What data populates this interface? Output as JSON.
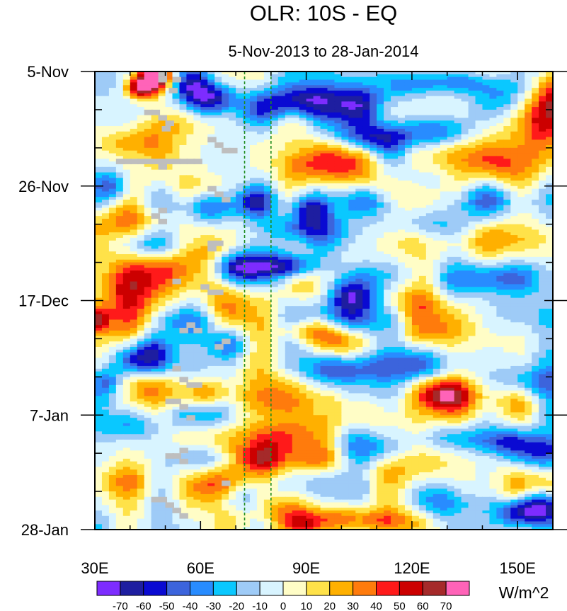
{
  "chart_data": {
    "type": "heatmap",
    "title": "OLR: 10S - EQ",
    "subtitle": "5-Nov-2013 to 28-Jan-2014",
    "x_axis": {
      "range": [
        30,
        160
      ],
      "ticks": [
        {
          "value": 30,
          "label": "30E"
        },
        {
          "value": 60,
          "label": "60E"
        },
        {
          "value": 90,
          "label": "90E"
        },
        {
          "value": 120,
          "label": "120E"
        },
        {
          "value": 150,
          "label": "150E"
        }
      ],
      "minor_tick_step": 10
    },
    "y_axis": {
      "range_days": [
        0,
        84
      ],
      "direction": "down",
      "ticks": [
        {
          "day": 0,
          "label": "5-Nov"
        },
        {
          "day": 21,
          "label": "26-Nov"
        },
        {
          "day": 42,
          "label": "17-Dec"
        },
        {
          "day": 63,
          "label": "7-Jan"
        },
        {
          "day": 84,
          "label": "28-Jan"
        }
      ],
      "minor_tick_step_days": 7
    },
    "reference_lines": [
      {
        "x": 72.5,
        "color": "#1e8c1e",
        "style": "dashed"
      },
      {
        "x": 80,
        "color": "#1e8c1e",
        "style": "dashed"
      }
    ],
    "missing_color": "#bebebe",
    "features": [
      {
        "cx": 43,
        "cy": 3,
        "sx": 3,
        "sy": 1.5,
        "v": 75
      },
      {
        "cx": 47,
        "cy": 1,
        "sx": 3,
        "sy": 1.5,
        "v": 75
      },
      {
        "cx": 63,
        "cy": 5,
        "sx": 5,
        "sy": 2,
        "v": -65
      },
      {
        "cx": 57,
        "cy": 2.5,
        "sx": 4,
        "sy": 2,
        "v": -40
      },
      {
        "cx": 50,
        "cy": 9.5,
        "sx": 6,
        "sy": 2,
        "v": 22
      },
      {
        "cx": 40,
        "cy": 13,
        "sx": 8,
        "sy": 2,
        "v": 25
      },
      {
        "cx": 80,
        "cy": 7,
        "sx": 7,
        "sy": 2,
        "v": -35
      },
      {
        "cx": 87,
        "cy": 5,
        "sx": 6,
        "sy": 2,
        "v": -50
      },
      {
        "cx": 104,
        "cy": 6,
        "sx": 9,
        "sy": 2.5,
        "v": -50
      },
      {
        "cx": 110,
        "cy": 12,
        "sx": 8,
        "sy": 2,
        "v": -55
      },
      {
        "cx": 128,
        "cy": 11,
        "sx": 7,
        "sy": 2,
        "v": -45
      },
      {
        "cx": 145,
        "cy": 5,
        "sx": 7,
        "sy": 2.5,
        "v": -35
      },
      {
        "cx": 135,
        "cy": 2,
        "sx": 8,
        "sy": 1.5,
        "v": -30
      },
      {
        "cx": 120,
        "cy": 2.5,
        "sx": 6,
        "sy": 1.5,
        "v": -25
      },
      {
        "cx": 157,
        "cy": 9,
        "sx": 4,
        "sy": 4,
        "v": 40
      },
      {
        "cx": 160,
        "cy": 4,
        "sx": 3,
        "sy": 3,
        "v": 35
      },
      {
        "cx": 101,
        "cy": 17,
        "sx": 8,
        "sy": 2.5,
        "v": 38
      },
      {
        "cx": 87,
        "cy": 17,
        "sx": 4,
        "sy": 2,
        "v": 20
      },
      {
        "cx": 145,
        "cy": 17,
        "sx": 8,
        "sy": 2.5,
        "v": 26
      },
      {
        "cx": 125,
        "cy": 19.5,
        "sx": 7,
        "sy": 2,
        "v": -20
      },
      {
        "cx": 55,
        "cy": 21,
        "sx": 8,
        "sy": 2,
        "v": 16
      },
      {
        "cx": 35,
        "cy": 21,
        "sx": 4,
        "sy": 2,
        "v": -45
      },
      {
        "cx": 76,
        "cy": 24,
        "sx": 4,
        "sy": 2,
        "v": -55
      },
      {
        "cx": 91,
        "cy": 25,
        "sx": 4,
        "sy": 2,
        "v": -60
      },
      {
        "cx": 107,
        "cy": 24,
        "sx": 6,
        "sy": 2,
        "v": -45
      },
      {
        "cx": 140,
        "cy": 24,
        "sx": 10,
        "sy": 2,
        "v": -30
      },
      {
        "cx": 63,
        "cy": 25,
        "sx": 5,
        "sy": 2,
        "v": -40
      },
      {
        "cx": 40,
        "cy": 27.5,
        "sx": 8,
        "sy": 2,
        "v": 20
      },
      {
        "cx": 88,
        "cy": 29,
        "sx": 8,
        "sy": 2,
        "v": -45
      },
      {
        "cx": 128,
        "cy": 28,
        "sx": 8,
        "sy": 2,
        "v": -25
      },
      {
        "cx": 118,
        "cy": 31,
        "sx": 7,
        "sy": 2,
        "v": 24
      },
      {
        "cx": 150,
        "cy": 31,
        "sx": 9,
        "sy": 2,
        "v": 16
      },
      {
        "cx": 45,
        "cy": 32,
        "sx": 7,
        "sy": 2,
        "v": -35
      },
      {
        "cx": 77,
        "cy": 36,
        "sx": 6,
        "sy": 2.5,
        "v": -72
      },
      {
        "cx": 69,
        "cy": 36,
        "sx": 4,
        "sy": 2,
        "v": -55
      },
      {
        "cx": 86,
        "cy": 35.5,
        "sx": 5,
        "sy": 1.5,
        "v": -45
      },
      {
        "cx": 50,
        "cy": 36,
        "sx": 8,
        "sy": 3,
        "v": 32
      },
      {
        "cx": 40,
        "cy": 39,
        "sx": 6,
        "sy": 2.5,
        "v": 28
      },
      {
        "cx": 63,
        "cy": 33,
        "sx": 5,
        "sy": 2,
        "v": 15
      },
      {
        "cx": 103,
        "cy": 41,
        "sx": 5,
        "sy": 2,
        "v": -65
      },
      {
        "cx": 110,
        "cy": 37.5,
        "sx": 8,
        "sy": 2,
        "v": -35
      },
      {
        "cx": 145,
        "cy": 38,
        "sx": 10,
        "sy": 2,
        "v": -30
      },
      {
        "cx": 93,
        "cy": 39,
        "sx": 5,
        "sy": 2,
        "v": 18
      },
      {
        "cx": 120,
        "cy": 43,
        "sx": 6,
        "sy": 2,
        "v": 22
      },
      {
        "cx": 40,
        "cy": 44,
        "sx": 5,
        "sy": 3,
        "v": 25
      },
      {
        "cx": 31,
        "cy": 45.5,
        "sx": 2,
        "sy": 1.5,
        "v": 45
      },
      {
        "cx": 55,
        "cy": 46,
        "sx": 7,
        "sy": 2,
        "v": -30
      },
      {
        "cx": 68,
        "cy": 44,
        "sx": 4,
        "sy": 2,
        "v": 22
      },
      {
        "cx": 100,
        "cy": 45,
        "sx": 7,
        "sy": 2,
        "v": -35
      },
      {
        "cx": 150,
        "cy": 45,
        "sx": 9,
        "sy": 2.5,
        "v": -25
      },
      {
        "cx": 90,
        "cy": 47.5,
        "sx": 6,
        "sy": 1.5,
        "v": 30
      },
      {
        "cx": 100,
        "cy": 49.5,
        "sx": 6,
        "sy": 2,
        "v": 38
      },
      {
        "cx": 125,
        "cy": 48,
        "sx": 7,
        "sy": 2,
        "v": 18
      },
      {
        "cx": 47,
        "cy": 52,
        "sx": 4,
        "sy": 2.5,
        "v": -68
      },
      {
        "cx": 40,
        "cy": 53,
        "sx": 4,
        "sy": 2,
        "v": -35
      },
      {
        "cx": 68,
        "cy": 50,
        "sx": 4,
        "sy": 2,
        "v": -40
      },
      {
        "cx": 33,
        "cy": 57,
        "sx": 3,
        "sy": 2,
        "v": -38
      },
      {
        "cx": 44,
        "cy": 58,
        "sx": 5,
        "sy": 2,
        "v": 25
      },
      {
        "cx": 63,
        "cy": 59,
        "sx": 5,
        "sy": 2,
        "v": 30
      },
      {
        "cx": 78,
        "cy": 60,
        "sx": 6,
        "sy": 2,
        "v": 22
      },
      {
        "cx": 85,
        "cy": 56,
        "sx": 5,
        "sy": 2,
        "v": 18
      },
      {
        "cx": 99,
        "cy": 55,
        "sx": 8,
        "sy": 2,
        "v": -40
      },
      {
        "cx": 117,
        "cy": 54,
        "sx": 8,
        "sy": 2,
        "v": -28
      },
      {
        "cx": 128,
        "cy": 59,
        "sx": 5,
        "sy": 2,
        "v": 48
      },
      {
        "cx": 139,
        "cy": 59.5,
        "sx": 8,
        "sy": 2.5,
        "v": 28
      },
      {
        "cx": 153,
        "cy": 57,
        "sx": 8,
        "sy": 2,
        "v": -35
      },
      {
        "cx": 58,
        "cy": 63,
        "sx": 6,
        "sy": 2,
        "v": -40
      },
      {
        "cx": 40,
        "cy": 65,
        "sx": 6,
        "sy": 2,
        "v": -32
      },
      {
        "cx": 108,
        "cy": 63,
        "sx": 7,
        "sy": 2,
        "v": 18
      },
      {
        "cx": 84,
        "cy": 67,
        "sx": 8,
        "sy": 2,
        "v": 32
      },
      {
        "cx": 78,
        "cy": 71,
        "sx": 5,
        "sy": 2,
        "v": 48
      },
      {
        "cx": 93,
        "cy": 71,
        "sx": 6,
        "sy": 2,
        "v": 35
      },
      {
        "cx": 60,
        "cy": 71,
        "sx": 6,
        "sy": 2,
        "v": -35
      },
      {
        "cx": 108,
        "cy": 69,
        "sx": 8,
        "sy": 2,
        "v": -30
      },
      {
        "cx": 130,
        "cy": 67,
        "sx": 7,
        "sy": 2,
        "v": -32
      },
      {
        "cx": 145,
        "cy": 68,
        "sx": 7,
        "sy": 2,
        "v": -55
      },
      {
        "cx": 157,
        "cy": 70,
        "sx": 5,
        "sy": 2,
        "v": -35
      },
      {
        "cx": 120,
        "cy": 73,
        "sx": 8,
        "sy": 2,
        "v": 16
      },
      {
        "cx": 40,
        "cy": 75,
        "sx": 6,
        "sy": 2,
        "v": 18
      },
      {
        "cx": 65,
        "cy": 76,
        "sx": 5,
        "sy": 2,
        "v": 30
      },
      {
        "cx": 72,
        "cy": 78,
        "sx": 5,
        "sy": 2,
        "v": -35
      },
      {
        "cx": 85,
        "cy": 80,
        "sx": 7,
        "sy": 2,
        "v": 30
      },
      {
        "cx": 101,
        "cy": 82,
        "sx": 7,
        "sy": 2,
        "v": 46
      },
      {
        "cx": 90,
        "cy": 83,
        "sx": 5,
        "sy": 1.5,
        "v": 40
      },
      {
        "cx": 114,
        "cy": 82.5,
        "sx": 6,
        "sy": 1.5,
        "v": 32
      },
      {
        "cx": 128,
        "cy": 79,
        "sx": 5,
        "sy": 2,
        "v": -30
      },
      {
        "cx": 150,
        "cy": 81,
        "sx": 4,
        "sy": 2,
        "v": -60
      },
      {
        "cx": 157,
        "cy": 80,
        "sx": 4,
        "sy": 2,
        "v": -70
      },
      {
        "cx": 143,
        "cy": 76,
        "sx": 8,
        "sy": 2,
        "v": 20
      }
    ],
    "missing_cells": [
      [
        48,
        0
      ],
      [
        48,
        1
      ],
      [
        52,
        1
      ],
      [
        51,
        3
      ],
      [
        44,
        7
      ],
      [
        46,
        7
      ],
      [
        48,
        8
      ],
      [
        50,
        9
      ],
      [
        49,
        10
      ],
      [
        62,
        12
      ],
      [
        64,
        13
      ],
      [
        66,
        14
      ],
      [
        68,
        14
      ],
      [
        36,
        16
      ],
      [
        38,
        16
      ],
      [
        40,
        16
      ],
      [
        42,
        16
      ],
      [
        44,
        16
      ],
      [
        46,
        16
      ],
      [
        48,
        16
      ],
      [
        50,
        16
      ],
      [
        52,
        16
      ],
      [
        54,
        16
      ],
      [
        56,
        16
      ],
      [
        58,
        16
      ],
      [
        48,
        17
      ],
      [
        62,
        21
      ],
      [
        64,
        22
      ],
      [
        66,
        23
      ],
      [
        48,
        25
      ],
      [
        46,
        26
      ],
      [
        48,
        27
      ],
      [
        62,
        31
      ],
      [
        64,
        31
      ],
      [
        62,
        32
      ],
      [
        52,
        38
      ],
      [
        60,
        39
      ],
      [
        62,
        40
      ],
      [
        64,
        40
      ],
      [
        56,
        46
      ],
      [
        54,
        47
      ],
      [
        58,
        47
      ],
      [
        66,
        49
      ],
      [
        64,
        50
      ],
      [
        52,
        54
      ],
      [
        54,
        56
      ],
      [
        56,
        57
      ],
      [
        58,
        57
      ],
      [
        50,
        60
      ],
      [
        52,
        60
      ],
      [
        54,
        61
      ],
      [
        56,
        63
      ],
      [
        54,
        69
      ],
      [
        50,
        70
      ],
      [
        52,
        70
      ],
      [
        54,
        71
      ],
      [
        66,
        75
      ],
      [
        46,
        78
      ],
      [
        48,
        78
      ],
      [
        50,
        79
      ],
      [
        52,
        80
      ],
      [
        54,
        81
      ]
    ],
    "noise_amplitude": 24,
    "seed": 20131105,
    "colorbar": {
      "levels": [
        -70,
        -60,
        -50,
        -40,
        -30,
        -20,
        -10,
        0,
        10,
        20,
        30,
        40,
        50,
        60,
        70
      ],
      "colors": [
        "#7d2cff",
        "#1e1ea0",
        "#0a0ad2",
        "#3c64dc",
        "#288cff",
        "#0ac8ff",
        "#9ecbf7",
        "#d8f4ff",
        "#fffdc6",
        "#ffe249",
        "#ffb000",
        "#ff7b0c",
        "#ff1a1a",
        "#cc0000",
        "#a52a2a",
        "#ff63b8"
      ],
      "tick_labels": [
        "-70",
        "-60",
        "-50",
        "-40",
        "-30",
        "-20",
        "-10",
        "0",
        "10",
        "20",
        "30",
        "40",
        "50",
        "60",
        "70"
      ],
      "unit_label": "W/m^2"
    }
  }
}
